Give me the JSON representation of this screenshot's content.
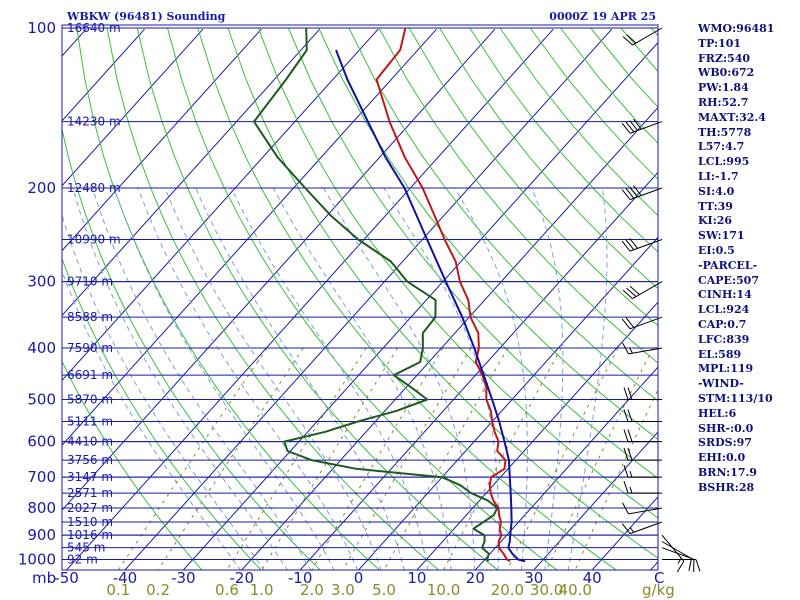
{
  "title": {
    "station": "WBKW (96481) Sounding",
    "time": "0000Z 19 APR 25"
  },
  "indices": [
    "WMO:96481",
    "TP:101",
    "FRZ:540",
    "WB0:672",
    "PW:1.84",
    "RH:52.7",
    "MAXT:32.4",
    "TH:5778",
    "L57:4.7",
    "LCL:995",
    "LI:-1.7",
    "SI:4.0",
    "TT:39",
    "KI:26",
    "SW:171",
    "EI:0.5",
    "-PARCEL-",
    "CAPE:507",
    "CINH:14",
    "LCL:924",
    "CAP:0.7",
    "LFC:839",
    "EL:589",
    "MPL:119",
    "-WIND-",
    "STM:113/10",
    "HEL:6",
    "SHR-:0.0",
    "SRDS:97",
    "EHI:0.0",
    "BRN:17.9",
    "BSHR:28"
  ],
  "axis_units": {
    "pressure": "mb",
    "temperature": "C",
    "mixing_ratio": "g/kg"
  },
  "colors": {
    "isobar": "#1a1aa8",
    "isotherm": "#1a1aa8",
    "dry_adiabat": "#3cbf3c",
    "moist_adiabat": "#7aa0d8",
    "mixing_ratio_line": "#8a8a2a",
    "temperature": "#c01818",
    "dewpoint": "#1f5a1f",
    "parcel": "#1010a0",
    "wind_barb": "#000000"
  },
  "chart_data": {
    "type": "line",
    "title": "WBKW (96481) Sounding",
    "subtitle": "0000Z 19 APR 25",
    "xlabel": "C",
    "ylabel": "mb",
    "y_log_scale": true,
    "y_reversed": true,
    "grid": true,
    "pressure_levels": [
      100,
      200,
      300,
      400,
      500,
      600,
      700,
      800,
      900,
      1000
    ],
    "pressure_tick_labels": [
      "100",
      "200",
      "300",
      "400",
      "500",
      "600",
      "700",
      "800",
      "900",
      "1000"
    ],
    "temperature_ticks": [
      -50,
      -40,
      -30,
      -20,
      -10,
      0,
      10,
      20,
      30,
      40
    ],
    "temperature_tick_labels": [
      "-50",
      "-40",
      "-30",
      "-20",
      "-10",
      "0",
      "10",
      "20",
      "30",
      "40"
    ],
    "mixing_ratio_labels": [
      "0.1",
      "0.2",
      "0.6",
      "1.0",
      "2.0",
      "3.0",
      "5.0",
      "10.0",
      "20.0",
      "30.0",
      "40.0"
    ],
    "height_labels": [
      {
        "p": 100,
        "label": "16640 m"
      },
      {
        "p": 150,
        "label": "14230 m"
      },
      {
        "p": 200,
        "label": "12480 m"
      },
      {
        "p": 250,
        "label": "10990 m"
      },
      {
        "p": 300,
        "label": "9710 m"
      },
      {
        "p": 350,
        "label": "8588 m"
      },
      {
        "p": 400,
        "label": "7590 m"
      },
      {
        "p": 450,
        "label": "6691 m"
      },
      {
        "p": 500,
        "label": "5870 m"
      },
      {
        "p": 550,
        "label": "5111 m"
      },
      {
        "p": 600,
        "label": "4410 m"
      },
      {
        "p": 650,
        "label": "3756 m"
      },
      {
        "p": 700,
        "label": "3147 m"
      },
      {
        "p": 750,
        "label": "2571 m"
      },
      {
        "p": 800,
        "label": "2027 m"
      },
      {
        "p": 850,
        "label": "1510 m"
      },
      {
        "p": 900,
        "label": "1016 m"
      },
      {
        "p": 950,
        "label": "545 m"
      },
      {
        "p": 1000,
        "label": "92 m"
      }
    ],
    "series": [
      {
        "name": "Temperature",
        "points": [
          [
            1008,
            24.6
          ],
          [
            1000,
            23.8
          ],
          [
            975,
            22.3
          ],
          [
            950,
            20.6
          ],
          [
            925,
            19.6
          ],
          [
            900,
            19.1
          ],
          [
            875,
            17.8
          ],
          [
            850,
            17.0
          ],
          [
            825,
            15.6
          ],
          [
            800,
            14.4
          ],
          [
            775,
            12.4
          ],
          [
            750,
            10.8
          ],
          [
            725,
            9.4
          ],
          [
            700,
            8.4
          ],
          [
            675,
            9.4
          ],
          [
            650,
            8.2
          ],
          [
            625,
            5.4
          ],
          [
            600,
            4.2
          ],
          [
            575,
            2.0
          ],
          [
            550,
            0.0
          ],
          [
            525,
            -1.9
          ],
          [
            500,
            -4.4
          ],
          [
            475,
            -6.2
          ],
          [
            450,
            -8.8
          ],
          [
            425,
            -12.0
          ],
          [
            400,
            -13.6
          ],
          [
            375,
            -16.0
          ],
          [
            350,
            -19.8
          ],
          [
            325,
            -22.8
          ],
          [
            300,
            -27.1
          ],
          [
            275,
            -30.9
          ],
          [
            250,
            -36.2
          ],
          [
            225,
            -41.7
          ],
          [
            200,
            -47.9
          ],
          [
            175,
            -55.7
          ],
          [
            150,
            -63.8
          ],
          [
            125,
            -72.5
          ],
          [
            110,
            -73.0
          ],
          [
            100,
            -75.5
          ]
        ]
      },
      {
        "name": "Dewpoint",
        "points": [
          [
            1008,
            20.9
          ],
          [
            1000,
            20.4
          ],
          [
            975,
            19.8
          ],
          [
            950,
            17.7
          ],
          [
            925,
            17.2
          ],
          [
            900,
            16.2
          ],
          [
            875,
            13.3
          ],
          [
            850,
            14.0
          ],
          [
            825,
            14.7
          ],
          [
            800,
            14.2
          ],
          [
            775,
            11.5
          ],
          [
            750,
            7.4
          ],
          [
            725,
            4.4
          ],
          [
            700,
            0.0
          ],
          [
            675,
            -16.0
          ],
          [
            650,
            -25.0
          ],
          [
            625,
            -30.5
          ],
          [
            600,
            -32.5
          ],
          [
            575,
            -27.0
          ],
          [
            550,
            -23.0
          ],
          [
            525,
            -18.0
          ],
          [
            500,
            -14.5
          ],
          [
            475,
            -19.0
          ],
          [
            450,
            -24.0
          ],
          [
            425,
            -21.5
          ],
          [
            400,
            -23.2
          ],
          [
            375,
            -25.5
          ],
          [
            350,
            -25.8
          ],
          [
            325,
            -28.4
          ],
          [
            300,
            -36.1
          ],
          [
            275,
            -42.0
          ],
          [
            250,
            -51.0
          ],
          [
            225,
            -59.5
          ],
          [
            200,
            -68.0
          ],
          [
            175,
            -77.5
          ],
          [
            150,
            -87.0
          ],
          [
            125,
            -88.0
          ],
          [
            110,
            -89.0
          ],
          [
            100,
            -92.5
          ]
        ]
      },
      {
        "name": "Parcel",
        "points": [
          [
            1008,
            27.2
          ],
          [
            1000,
            25.7
          ],
          [
            975,
            23.8
          ],
          [
            950,
            22.2
          ],
          [
            925,
            21.5
          ],
          [
            900,
            20.6
          ],
          [
            850,
            18.8
          ],
          [
            800,
            16.6
          ],
          [
            750,
            14.2
          ],
          [
            700,
            11.6
          ],
          [
            650,
            8.8
          ],
          [
            600,
            5.2
          ],
          [
            550,
            1.2
          ],
          [
            500,
            -3.4
          ],
          [
            450,
            -8.6
          ],
          [
            400,
            -14.4
          ],
          [
            350,
            -21.2
          ],
          [
            300,
            -29.5
          ],
          [
            250,
            -39.2
          ],
          [
            200,
            -51.0
          ],
          [
            175,
            -59.0
          ],
          [
            150,
            -67.5
          ],
          [
            125,
            -77.5
          ],
          [
            110,
            -84.0
          ]
        ]
      }
    ],
    "winds": [
      {
        "p": 1000,
        "dir": 90,
        "kt": 10
      },
      {
        "p": 950,
        "dir": 110,
        "kt": 10
      },
      {
        "p": 925,
        "dir": 120,
        "kt": 10
      },
      {
        "p": 900,
        "dir": 140,
        "kt": 15
      },
      {
        "p": 850,
        "dir": 250,
        "kt": 15
      },
      {
        "p": 800,
        "dir": 260,
        "kt": 10
      },
      {
        "p": 750,
        "dir": 270,
        "kt": 15
      },
      {
        "p": 700,
        "dir": 270,
        "kt": 15
      },
      {
        "p": 650,
        "dir": 270,
        "kt": 20
      },
      {
        "p": 600,
        "dir": 270,
        "kt": 20
      },
      {
        "p": 550,
        "dir": 270,
        "kt": 20
      },
      {
        "p": 500,
        "dir": 270,
        "kt": 20
      },
      {
        "p": 400,
        "dir": 260,
        "kt": 15
      },
      {
        "p": 350,
        "dir": 250,
        "kt": 20
      },
      {
        "p": 300,
        "dir": 240,
        "kt": 30
      },
      {
        "p": 250,
        "dir": 250,
        "kt": 30
      },
      {
        "p": 200,
        "dir": 250,
        "kt": 40
      },
      {
        "p": 150,
        "dir": 250,
        "kt": 40
      },
      {
        "p": 100,
        "dir": 240,
        "kt": 20
      }
    ]
  }
}
